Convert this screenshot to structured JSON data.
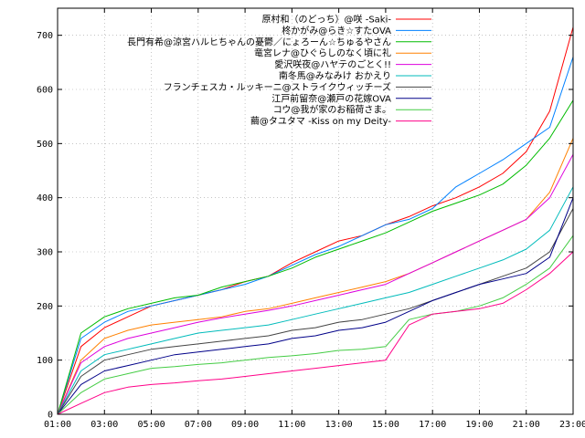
{
  "chart_data": {
    "type": "line",
    "title": "",
    "xlabel": "",
    "ylabel": "",
    "xlim": [
      "01:00",
      "23:00"
    ],
    "ylim": [
      0,
      750
    ],
    "grid": true,
    "legend_position": "top-right",
    "x_ticks": [
      "01:00",
      "03:00",
      "05:00",
      "07:00",
      "09:00",
      "11:00",
      "13:00",
      "15:00",
      "17:00",
      "19:00",
      "21:00",
      "23:00"
    ],
    "y_ticks": [
      0,
      100,
      200,
      300,
      400,
      500,
      600,
      700
    ],
    "x": [
      "01:00",
      "02:00",
      "03:00",
      "04:00",
      "05:00",
      "06:00",
      "07:00",
      "08:00",
      "09:00",
      "10:00",
      "11:00",
      "12:00",
      "13:00",
      "14:00",
      "15:00",
      "16:00",
      "17:00",
      "18:00",
      "19:00",
      "20:00",
      "21:00",
      "22:00",
      "23:00"
    ],
    "series": [
      {
        "name": "原村和（のどっち）@咲 -Saki-",
        "color": "#ff0000",
        "values": [
          0,
          125,
          160,
          180,
          200,
          210,
          220,
          230,
          245,
          255,
          280,
          300,
          320,
          330,
          350,
          365,
          385,
          400,
          420,
          445,
          485,
          560,
          715
        ]
      },
      {
        "name": "柊かがみ@らき☆すたOVA",
        "color": "#0080ff",
        "values": [
          0,
          140,
          170,
          190,
          200,
          210,
          220,
          230,
          240,
          255,
          275,
          295,
          310,
          330,
          350,
          360,
          380,
          420,
          445,
          470,
          500,
          530,
          660
        ]
      },
      {
        "name": "長門有希@涼宮ハルヒちゃんの憂鬱／にょろーん☆ちゅるやさん",
        "color": "#00bb00",
        "values": [
          0,
          150,
          180,
          195,
          205,
          215,
          220,
          235,
          245,
          255,
          270,
          290,
          305,
          320,
          335,
          355,
          375,
          390,
          405,
          425,
          460,
          510,
          580
        ]
      },
      {
        "name": "竜宮レナ@ひぐらしのなく頃に礼",
        "color": "#ff8000",
        "values": [
          0,
          100,
          140,
          155,
          165,
          170,
          175,
          180,
          190,
          195,
          205,
          215,
          225,
          235,
          245,
          260,
          280,
          300,
          320,
          340,
          360,
          410,
          510
        ]
      },
      {
        "name": "愛沢咲夜@ハヤテのごとく!!",
        "color": "#dd00dd",
        "values": [
          0,
          95,
          125,
          140,
          150,
          160,
          170,
          178,
          185,
          192,
          200,
          210,
          220,
          230,
          240,
          260,
          280,
          300,
          320,
          340,
          360,
          400,
          480
        ]
      },
      {
        "name": "南冬馬@みなみけ おかえり",
        "color": "#00bbbb",
        "values": [
          0,
          80,
          110,
          120,
          130,
          140,
          150,
          155,
          160,
          165,
          175,
          185,
          195,
          205,
          215,
          225,
          240,
          255,
          270,
          285,
          305,
          340,
          420
        ]
      },
      {
        "name": "フランチェスカ・ルッキーニ@ストライクウィッチーズ",
        "color": "#444444",
        "values": [
          0,
          70,
          100,
          110,
          120,
          125,
          130,
          135,
          140,
          145,
          155,
          160,
          170,
          175,
          185,
          195,
          210,
          225,
          240,
          255,
          270,
          300,
          380
        ]
      },
      {
        "name": "江戸前留奈@瀬戸の花嫁OVA",
        "color": "#000088",
        "values": [
          0,
          55,
          80,
          90,
          100,
          110,
          115,
          120,
          125,
          130,
          140,
          145,
          155,
          160,
          170,
          190,
          210,
          225,
          240,
          250,
          260,
          290,
          400
        ]
      },
      {
        "name": "コウ@我が家のお稲荷さま。",
        "color": "#44cc44",
        "values": [
          0,
          40,
          65,
          75,
          85,
          88,
          92,
          95,
          100,
          105,
          108,
          112,
          118,
          120,
          125,
          175,
          185,
          190,
          200,
          215,
          240,
          270,
          330
        ]
      },
      {
        "name": "繭@タユタマ -Kiss on my Deity-",
        "color": "#ff0088",
        "values": [
          0,
          20,
          40,
          50,
          55,
          58,
          62,
          65,
          70,
          75,
          80,
          85,
          90,
          95,
          100,
          165,
          185,
          190,
          195,
          205,
          230,
          260,
          300
        ]
      }
    ]
  }
}
